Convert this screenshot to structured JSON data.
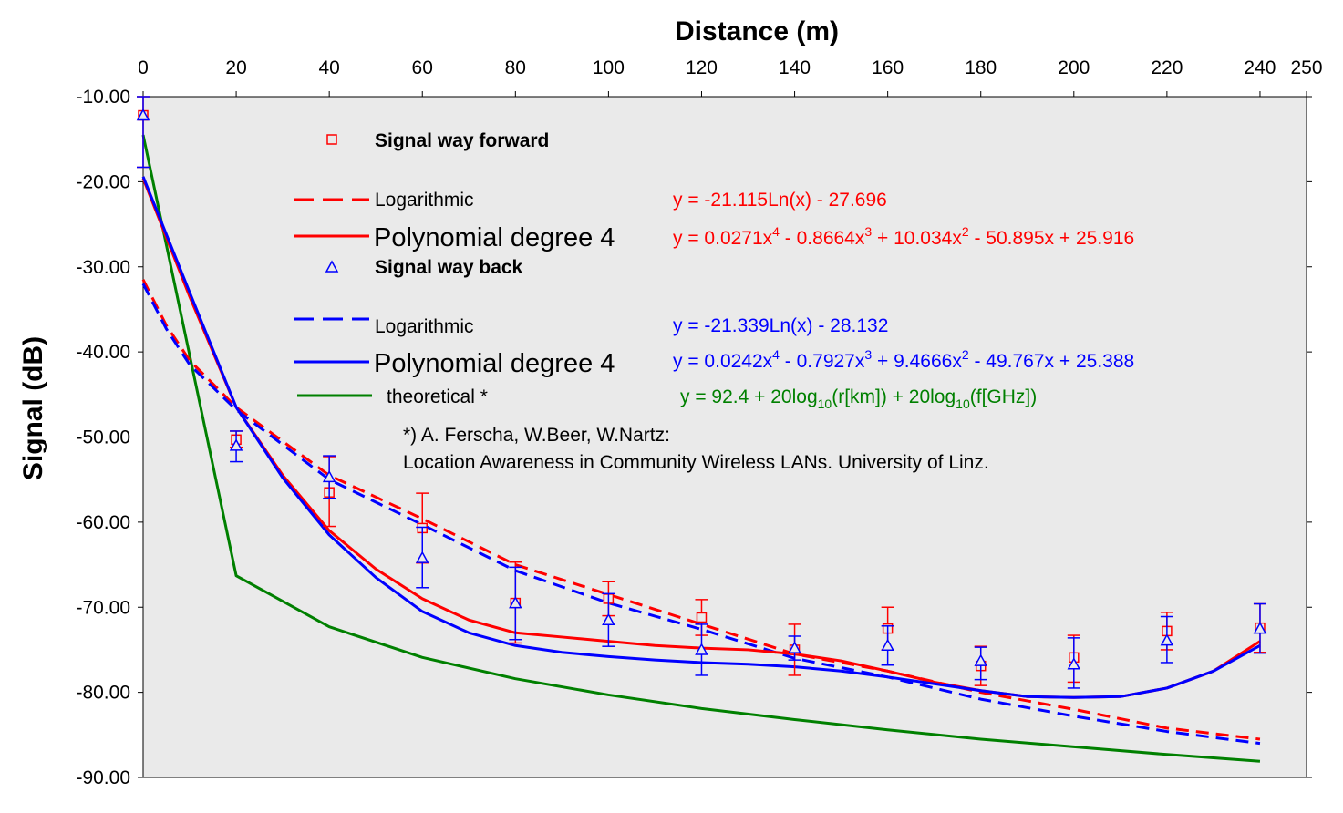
{
  "chart_data": {
    "type": "scatter",
    "xlabel": "Distance (m)",
    "ylabel": "Signal (dB)",
    "xlim": [
      0,
      250
    ],
    "ylim": [
      -90,
      -10
    ],
    "x_ticks": [
      0,
      20,
      40,
      60,
      80,
      100,
      120,
      140,
      160,
      180,
      200,
      220,
      240,
      250
    ],
    "y_ticks": [
      -10,
      -20,
      -30,
      -40,
      -50,
      -60,
      -70,
      -80,
      -90
    ],
    "y_tick_labels": [
      "-10.00",
      "-20.00",
      "-30.00",
      "-40.00",
      "-50.00",
      "-60.00",
      "-70.00",
      "-80.00",
      "-90.00"
    ],
    "x_axis_position": "top",
    "grid": false,
    "colors": {
      "forward": "#ff0000",
      "back": "#0000ff",
      "theoretical": "#008000",
      "plot_bg": "#eaeaea"
    },
    "series": [
      {
        "name": "Signal way forward",
        "kind": "markers",
        "marker": "square",
        "x": [
          0,
          20,
          40,
          60,
          80,
          100,
          120,
          140,
          160,
          180,
          200,
          220,
          240
        ],
        "values": [
          -12.2,
          -50.3,
          -56.5,
          -60.7,
          -69.5,
          -69.0,
          -71.2,
          -75.0,
          -72.5,
          -76.9,
          -75.9,
          -72.8,
          -72.4
        ],
        "err_low": [
          -18.3,
          -51.2,
          -60.5,
          -64.8,
          -74.2,
          -71.0,
          -73.3,
          -78.0,
          -75.0,
          -79.2,
          -78.8,
          -75.0,
          -75.3
        ],
        "err_high": [
          -10.0,
          -49.3,
          -52.3,
          -56.6,
          -64.7,
          -67.0,
          -69.1,
          -72.0,
          -70.0,
          -74.6,
          -73.3,
          -70.6,
          -69.6
        ]
      },
      {
        "name": "Logarithmic",
        "kind": "line",
        "dash": true,
        "color": "#ff0000",
        "equation": "y = -21.115Ln(x) - 27.696",
        "x": [
          0,
          5,
          10,
          20,
          40,
          60,
          80,
          100,
          120,
          140,
          160,
          180,
          200,
          220,
          240
        ],
        "values": [
          -31.5,
          -36.9,
          -41.0,
          -46.5,
          -54.5,
          -59.6,
          -65.0,
          -68.5,
          -72.0,
          -75.5,
          -77.5,
          -80.0,
          -82.0,
          -84.2,
          -85.5
        ]
      },
      {
        "name": "Polynomial degree 4",
        "kind": "line",
        "color": "#ff0000",
        "equation": "y = 0.0271x4 - 0.8664x3 + 10.034x2 - 50.895x + 25.916",
        "x": [
          0,
          10,
          20,
          30,
          40,
          50,
          60,
          70,
          80,
          90,
          100,
          110,
          120,
          130,
          140,
          150,
          160,
          170,
          180,
          190,
          200,
          210,
          220,
          230,
          240
        ],
        "values": [
          -19.6,
          -33.5,
          -46.5,
          -54.5,
          -61.0,
          -65.5,
          -69.0,
          -71.5,
          -73.0,
          -73.5,
          -74.0,
          -74.5,
          -74.8,
          -75.0,
          -75.5,
          -76.3,
          -77.5,
          -78.8,
          -79.8,
          -80.5,
          -80.6,
          -80.5,
          -79.5,
          -77.5,
          -74.0
        ]
      },
      {
        "name": "Signal way back",
        "kind": "markers",
        "marker": "triangle",
        "x": [
          0,
          20,
          40,
          60,
          80,
          100,
          120,
          140,
          160,
          180,
          200,
          220,
          240
        ],
        "values": [
          -12.2,
          -51.0,
          -54.7,
          -64.2,
          -69.5,
          -71.5,
          -75.0,
          -74.8,
          -74.5,
          -76.3,
          -76.7,
          -73.9,
          -72.5
        ],
        "err_low": [
          -18.3,
          -52.9,
          -57.2,
          -67.7,
          -73.8,
          -74.6,
          -78.0,
          -76.2,
          -76.8,
          -78.5,
          -79.5,
          -76.5,
          -75.4
        ],
        "err_high": [
          -10.0,
          -49.3,
          -52.2,
          -60.6,
          -65.3,
          -68.4,
          -72.0,
          -73.4,
          -72.2,
          -74.7,
          -73.6,
          -71.1,
          -69.6
        ]
      },
      {
        "name": "Logarithmic",
        "kind": "line",
        "dash": true,
        "color": "#0000ff",
        "equation": "y = -21.339Ln(x) - 28.132",
        "x": [
          0,
          5,
          10,
          20,
          40,
          60,
          80,
          100,
          120,
          140,
          160,
          180,
          200,
          220,
          240
        ],
        "values": [
          -32.0,
          -37.3,
          -41.5,
          -46.8,
          -55.0,
          -60.3,
          -65.7,
          -69.5,
          -72.6,
          -76.0,
          -78.2,
          -80.8,
          -82.8,
          -84.6,
          -86.0
        ]
      },
      {
        "name": "Polynomial degree 4",
        "kind": "line",
        "color": "#0000ff",
        "equation": "y = 0.0242x4 - 0.7927x3 + 9.4666x2 - 49.767x + 25.388",
        "x": [
          0,
          10,
          20,
          30,
          40,
          50,
          60,
          70,
          80,
          90,
          100,
          110,
          120,
          130,
          140,
          150,
          160,
          170,
          180,
          190,
          200,
          210,
          220,
          230,
          240
        ],
        "values": [
          -19.4,
          -33.0,
          -46.5,
          -54.8,
          -61.5,
          -66.5,
          -70.5,
          -73.0,
          -74.5,
          -75.3,
          -75.8,
          -76.2,
          -76.5,
          -76.7,
          -77.0,
          -77.5,
          -78.2,
          -79.0,
          -79.8,
          -80.5,
          -80.6,
          -80.5,
          -79.5,
          -77.5,
          -74.5
        ]
      },
      {
        "name": "theoretical *",
        "kind": "line",
        "color": "#008000",
        "equation": "y = 92.4 + 20log10(r[km]) + 20log10(f[GHz])",
        "x": [
          0,
          20,
          40,
          60,
          80,
          100,
          120,
          140,
          160,
          180,
          200,
          220,
          240
        ],
        "values": [
          -14.5,
          -66.3,
          -72.3,
          -75.9,
          -78.4,
          -80.3,
          -81.9,
          -83.2,
          -84.4,
          -85.5,
          -86.4,
          -87.3,
          -88.1
        ]
      }
    ],
    "legend": {
      "placement": "inside-top",
      "forward_title": "Signal way forward",
      "forward_log": "Logarithmic",
      "forward_poly": "Polynomial degree 4",
      "forward_log_eq": "y = -21.115Ln(x) - 27.696",
      "forward_poly_eq": [
        "y = 0.0271x",
        "4",
        " - 0.8664x",
        "3",
        " + 10.034x",
        "2",
        " - 50.895x + 25.916"
      ],
      "back_title": "Signal way back",
      "back_log": "Logarithmic",
      "back_poly": "Polynomial degree 4",
      "back_log_eq": "y = -21.339Ln(x) - 28.132",
      "back_poly_eq": [
        "y = 0.0242x",
        "4",
        " - 0.7927x",
        "3",
        " + 9.4666x",
        "2",
        " - 49.767x + 25.388"
      ],
      "theoretical": "theoretical *",
      "theoretical_eq": [
        "y = 92.4 + 20log",
        "10",
        "(r[km]) + 20log",
        "10",
        "(f[GHz])"
      ]
    },
    "annotation": [
      "*) A. Ferscha, W.Beer, W.Nartz:",
      "Location Awareness in Community Wireless LANs. University of Linz."
    ]
  }
}
